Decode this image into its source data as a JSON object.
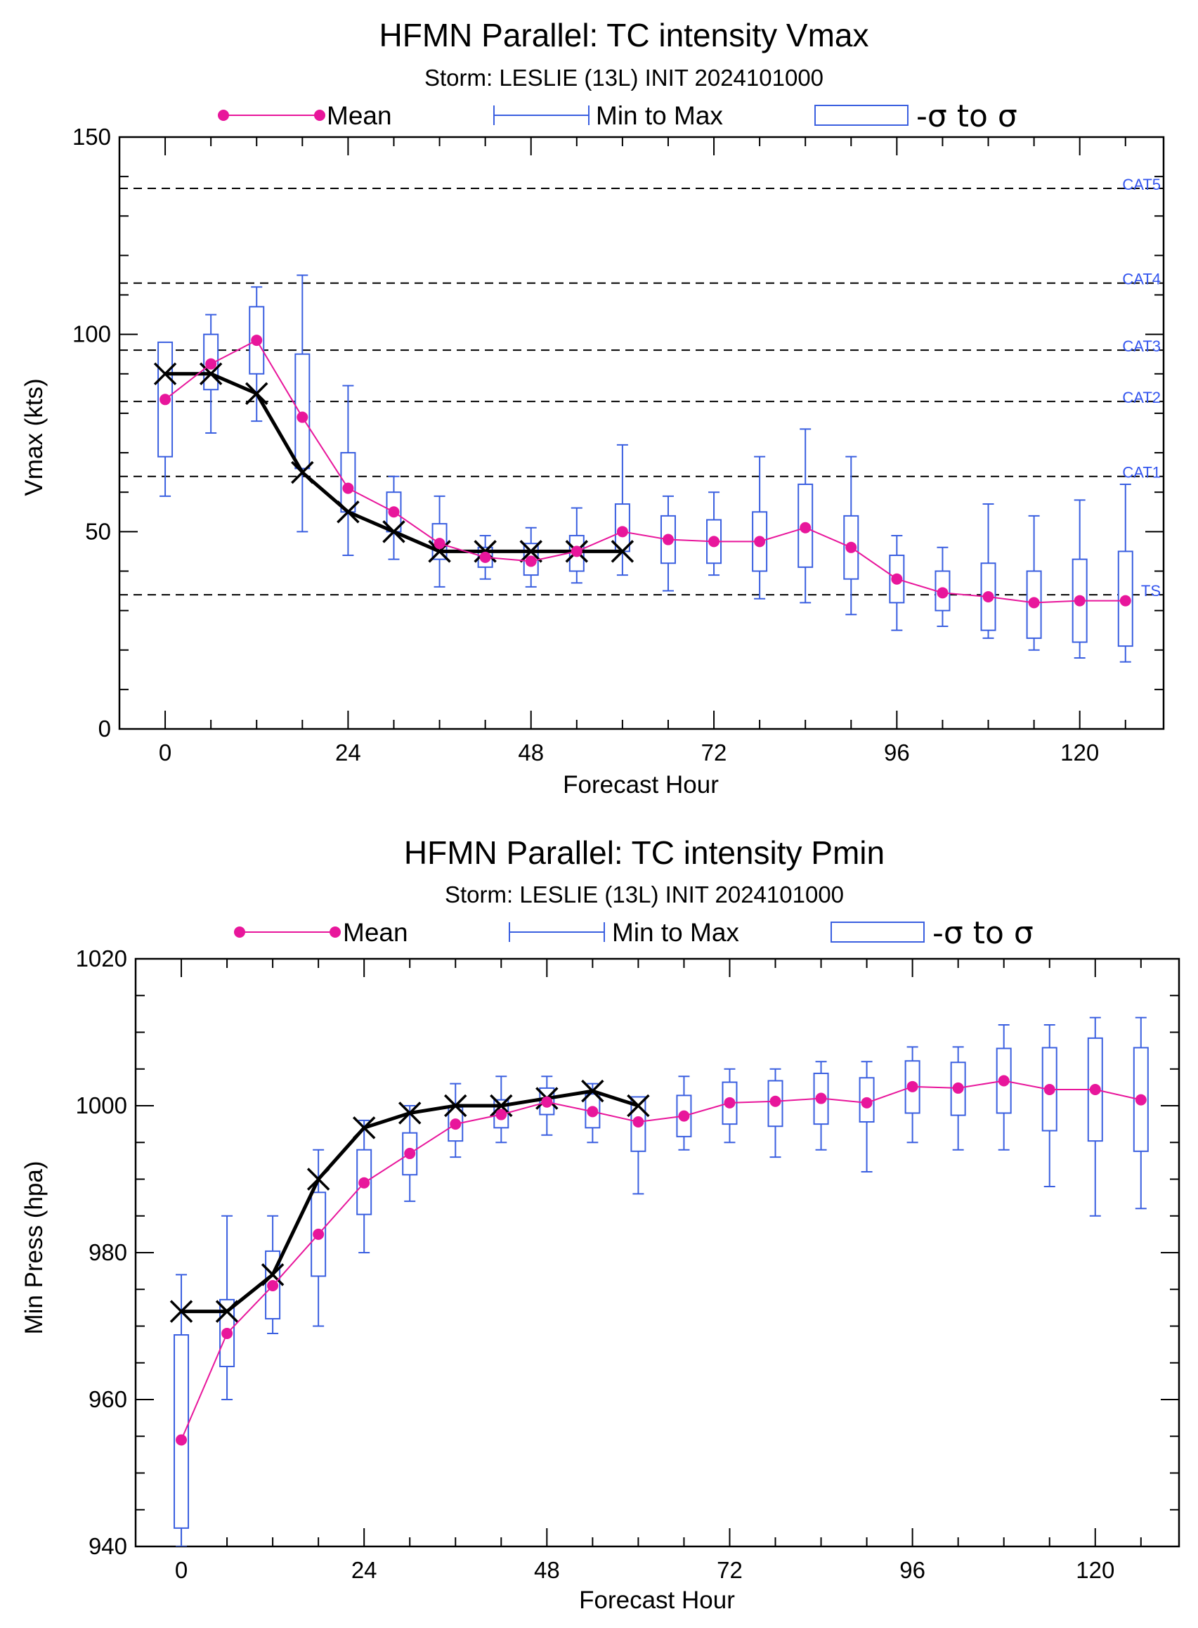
{
  "colors": {
    "mean": "#e8169b",
    "range": "#3a5fe0",
    "best_track": "#000000",
    "threshold": "#000000"
  },
  "chart_data": [
    {
      "type": "line",
      "title": "HFMN Parallel: TC intensity Vmax",
      "subtitle": "Storm: LESLIE (13L) INIT 2024101000",
      "xlabel": "Forecast Hour",
      "ylabel": "Vmax (kts)",
      "xlim": [
        -6,
        131
      ],
      "ylim": [
        0,
        150
      ],
      "xticks": [
        0,
        24,
        48,
        72,
        96,
        120
      ],
      "yticks": [
        0,
        50,
        100,
        150
      ],
      "grid": false,
      "legend": {
        "placement": "top",
        "entries": [
          {
            "label": "Mean"
          },
          {
            "label": "Min to Max"
          },
          {
            "label": "-σ to σ"
          }
        ]
      },
      "thresholds": [
        {
          "label": "CAT5",
          "value": 137
        },
        {
          "label": "CAT4",
          "value": 113
        },
        {
          "label": "CAT3",
          "value": 96
        },
        {
          "label": "CAT2",
          "value": 83
        },
        {
          "label": "CAT1",
          "value": 64
        },
        {
          "label": "TS",
          "value": 34
        }
      ],
      "box_series": {
        "x": [
          0,
          6,
          12,
          18,
          24,
          30,
          36,
          42,
          48,
          54,
          60,
          66,
          72,
          78,
          84,
          90,
          96,
          102,
          108,
          114,
          120,
          126
        ],
        "mean": [
          83.5,
          92.5,
          98.5,
          79,
          61,
          55,
          47,
          43.5,
          42.5,
          45,
          50,
          48,
          47.5,
          47.5,
          51,
          46,
          38,
          34.5,
          33.5,
          32,
          32.5,
          32.5
        ],
        "min": [
          59,
          75,
          78,
          50,
          44,
          43,
          36,
          38,
          36,
          37,
          39,
          35,
          39,
          33,
          32,
          29,
          25,
          26,
          23,
          20,
          18,
          17
        ],
        "max": [
          95,
          105,
          112,
          115,
          87,
          64,
          59,
          49,
          51,
          56,
          72,
          59,
          60,
          69,
          76,
          69,
          49,
          46,
          57,
          54,
          58,
          62
        ],
        "sigma_low": [
          69,
          86,
          90,
          66,
          55,
          50,
          43,
          41,
          39,
          40,
          45,
          42,
          42,
          40,
          41,
          38,
          32,
          30,
          25,
          23,
          22,
          21
        ],
        "sigma_high": [
          98,
          100,
          107,
          95,
          70,
          60,
          52,
          46,
          47,
          49,
          57,
          54,
          53,
          55,
          62,
          54,
          44,
          40,
          42,
          40,
          43,
          45
        ]
      },
      "best_track": {
        "x": [
          0,
          6,
          12,
          18,
          24,
          30,
          36,
          42,
          48,
          54,
          60
        ],
        "y": [
          90,
          90,
          85,
          65,
          55,
          50,
          45,
          45,
          45,
          45,
          45
        ]
      }
    },
    {
      "type": "line",
      "title": "HFMN Parallel: TC intensity Pmin",
      "subtitle": "Storm: LESLIE (13L) INIT 2024101000",
      "xlabel": "Forecast Hour",
      "ylabel": "Min Press (hpa)",
      "xlim": [
        -6,
        131
      ],
      "ylim": [
        940,
        1020
      ],
      "xticks": [
        0,
        24,
        48,
        72,
        96,
        120
      ],
      "yticks": [
        940,
        960,
        980,
        1000,
        1020
      ],
      "grid": false,
      "legend": {
        "placement": "top",
        "entries": [
          {
            "label": "Mean"
          },
          {
            "label": "Min to Max"
          },
          {
            "label": "-σ to σ"
          }
        ]
      },
      "thresholds": [],
      "box_series": {
        "x": [
          0,
          6,
          12,
          18,
          24,
          30,
          36,
          42,
          48,
          54,
          60,
          66,
          72,
          78,
          84,
          90,
          96,
          102,
          108,
          114,
          120,
          126
        ],
        "mean": [
          954.5,
          969,
          975.5,
          982.5,
          989.5,
          993.5,
          997.5,
          998.8,
          1000.5,
          999.2,
          997.8,
          998.6,
          1000.4,
          1000.6,
          1001,
          1000.4,
          1002.6,
          1002.4,
          1003.4,
          1002.2,
          1002.2,
          1000.8
        ],
        "min": [
          940,
          960,
          969,
          970,
          980,
          987,
          993,
          995,
          996,
          995,
          988,
          994,
          995,
          993,
          994,
          991,
          995,
          994,
          994,
          989,
          985,
          986
        ],
        "max": [
          977,
          985,
          985,
          994,
          998,
          1000,
          1003,
          1004,
          1004,
          1003,
          1001,
          1004,
          1005,
          1005,
          1006,
          1006,
          1008,
          1008,
          1011,
          1011,
          1012,
          1012
        ],
        "sigma_low": [
          942.5,
          964.5,
          971,
          976.8,
          985.2,
          990.6,
          995.2,
          997,
          998.8,
          997,
          993.8,
          995.8,
          997.5,
          997.2,
          997.5,
          997.8,
          999,
          998.7,
          999,
          996.6,
          995.2,
          993.8
        ],
        "sigma_high": [
          968.8,
          973.6,
          980.2,
          988.2,
          994,
          996.3,
          999.8,
          1000.8,
          1002.4,
          1001.6,
          1001.2,
          1001.4,
          1003.2,
          1003.4,
          1004.4,
          1003.8,
          1006.1,
          1005.9,
          1007.8,
          1007.9,
          1009.2,
          1007.9
        ]
      },
      "best_track": {
        "x": [
          0,
          6,
          12,
          18,
          24,
          30,
          36,
          42,
          48,
          54,
          60
        ],
        "y": [
          972,
          972,
          977,
          990,
          997,
          999,
          1000,
          1000,
          1001,
          1002,
          1000
        ]
      }
    }
  ]
}
